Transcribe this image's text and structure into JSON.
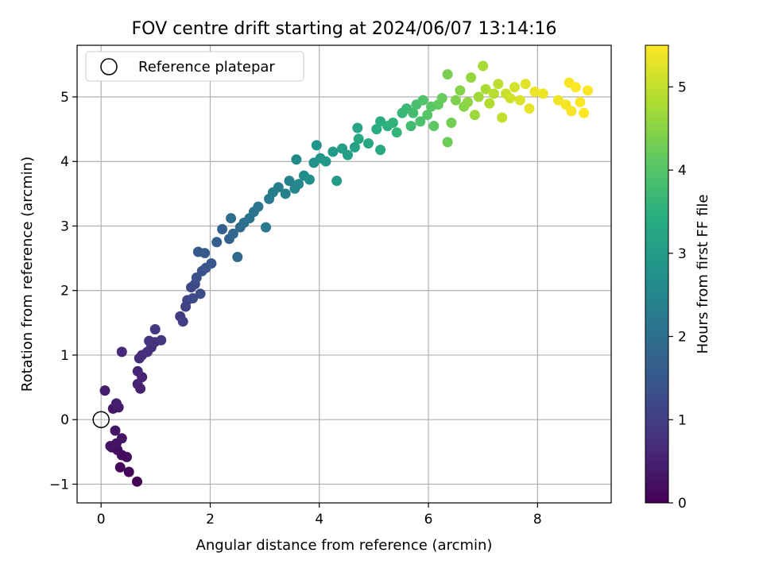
{
  "chart_data": {
    "type": "scatter",
    "title": "FOV centre drift starting at 2024/06/07 13:14:16",
    "xlabel": "Angular distance from reference (arcmin)",
    "ylabel": "Rotation from reference (arcmin)",
    "xlim": [
      -0.44,
      9.35
    ],
    "ylim": [
      -1.29,
      5.8
    ],
    "xticks": [
      0,
      2,
      4,
      6,
      8
    ],
    "xtick_labels": [
      "0",
      "2",
      "4",
      "6",
      "8"
    ],
    "yticks": [
      -1,
      0,
      1,
      2,
      3,
      4,
      5
    ],
    "ytick_labels": [
      "−1",
      "0",
      "1",
      "2",
      "3",
      "4",
      "5"
    ],
    "grid": true,
    "legend": {
      "placement": "top-left",
      "entries": [
        "Reference platepar"
      ]
    },
    "reference_point": {
      "x": 0,
      "y": 0
    },
    "colorbar": {
      "label": "Hours from first FF file",
      "range": [
        0,
        5.5
      ],
      "ticks": [
        0,
        1,
        2,
        3,
        4,
        5
      ],
      "tick_labels": [
        "0",
        "1",
        "2",
        "3",
        "4",
        "5"
      ],
      "colormap": "viridis"
    },
    "points": [
      [
        0.66,
        -0.96,
        0.05
      ],
      [
        0.51,
        -0.81,
        0.1
      ],
      [
        0.35,
        -0.74,
        0.12
      ],
      [
        0.47,
        -0.58,
        0.15
      ],
      [
        0.38,
        -0.55,
        0.17
      ],
      [
        0.3,
        -0.47,
        0.2
      ],
      [
        0.2,
        -0.43,
        0.22
      ],
      [
        0.17,
        -0.41,
        0.25
      ],
      [
        0.28,
        -0.37,
        0.28
      ],
      [
        0.38,
        -0.29,
        0.3
      ],
      [
        0.26,
        -0.17,
        0.33
      ],
      [
        0.22,
        0.17,
        0.36
      ],
      [
        0.32,
        0.19,
        0.4
      ],
      [
        0.28,
        0.25,
        0.43
      ],
      [
        0.07,
        0.45,
        0.45
      ],
      [
        0.72,
        0.48,
        0.5
      ],
      [
        0.67,
        0.55,
        0.53
      ],
      [
        0.75,
        0.66,
        0.57
      ],
      [
        0.67,
        0.75,
        0.6
      ],
      [
        0.38,
        1.05,
        0.63
      ],
      [
        0.7,
        0.95,
        0.67
      ],
      [
        0.75,
        1.0,
        0.7
      ],
      [
        0.85,
        1.05,
        0.73
      ],
      [
        0.92,
        1.12,
        0.77
      ],
      [
        0.98,
        1.2,
        0.8
      ],
      [
        0.88,
        1.22,
        0.83
      ],
      [
        1.1,
        1.23,
        0.87
      ],
      [
        0.99,
        1.4,
        0.9
      ],
      [
        1.45,
        1.6,
        0.95
      ],
      [
        1.5,
        1.52,
        1.0
      ],
      [
        1.55,
        1.75,
        1.05
      ],
      [
        1.58,
        1.85,
        1.1
      ],
      [
        1.65,
        2.05,
        1.15
      ],
      [
        1.72,
        2.1,
        1.2
      ],
      [
        1.68,
        1.88,
        1.25
      ],
      [
        1.82,
        1.95,
        1.3
      ],
      [
        1.75,
        2.2,
        1.35
      ],
      [
        1.85,
        2.3,
        1.4
      ],
      [
        1.92,
        2.35,
        1.45
      ],
      [
        2.02,
        2.42,
        1.5
      ],
      [
        1.78,
        2.6,
        1.55
      ],
      [
        1.9,
        2.58,
        1.6
      ],
      [
        2.12,
        2.75,
        1.65
      ],
      [
        2.22,
        2.95,
        1.7
      ],
      [
        2.35,
        2.8,
        1.75
      ],
      [
        2.42,
        2.88,
        1.8
      ],
      [
        2.5,
        2.52,
        1.85
      ],
      [
        2.55,
        2.98,
        1.9
      ],
      [
        2.38,
        3.12,
        1.95
      ],
      [
        2.62,
        3.05,
        2.0
      ],
      [
        2.72,
        3.12,
        2.05
      ],
      [
        2.8,
        3.22,
        2.1
      ],
      [
        2.88,
        3.3,
        2.15
      ],
      [
        3.02,
        2.98,
        2.2
      ],
      [
        3.08,
        3.42,
        2.25
      ],
      [
        3.15,
        3.52,
        2.3
      ],
      [
        3.25,
        3.6,
        2.35
      ],
      [
        3.38,
        3.5,
        2.4
      ],
      [
        3.45,
        3.7,
        2.45
      ],
      [
        3.55,
        3.58,
        2.5
      ],
      [
        3.62,
        3.65,
        2.55
      ],
      [
        3.58,
        4.03,
        2.6
      ],
      [
        3.72,
        3.78,
        2.65
      ],
      [
        3.82,
        3.72,
        2.7
      ],
      [
        3.9,
        3.98,
        2.75
      ],
      [
        3.95,
        4.25,
        2.8
      ],
      [
        4.02,
        4.05,
        2.85
      ],
      [
        4.12,
        4.0,
        2.9
      ],
      [
        4.25,
        4.15,
        2.95
      ],
      [
        4.32,
        3.7,
        3.0
      ],
      [
        4.42,
        4.2,
        3.05
      ],
      [
        4.52,
        4.1,
        3.1
      ],
      [
        4.65,
        4.22,
        3.15
      ],
      [
        4.7,
        4.52,
        3.2
      ],
      [
        4.72,
        4.35,
        3.25
      ],
      [
        4.9,
        4.28,
        3.3
      ],
      [
        5.12,
        4.18,
        3.35
      ],
      [
        5.05,
        4.5,
        3.4
      ],
      [
        5.12,
        4.62,
        3.45
      ],
      [
        5.25,
        4.55,
        3.5
      ],
      [
        5.35,
        4.6,
        3.55
      ],
      [
        5.42,
        4.45,
        3.6
      ],
      [
        5.52,
        4.75,
        3.65
      ],
      [
        5.6,
        4.82,
        3.7
      ],
      [
        5.68,
        4.55,
        3.75
      ],
      [
        5.72,
        4.75,
        3.8
      ],
      [
        5.78,
        4.88,
        3.85
      ],
      [
        5.85,
        4.62,
        3.9
      ],
      [
        5.9,
        4.95,
        3.95
      ],
      [
        5.98,
        4.72,
        4.0
      ],
      [
        6.05,
        4.85,
        4.05
      ],
      [
        6.1,
        4.55,
        4.1
      ],
      [
        6.18,
        4.88,
        4.15
      ],
      [
        6.25,
        4.98,
        4.2
      ],
      [
        6.35,
        4.3,
        4.25
      ],
      [
        6.42,
        4.6,
        4.3
      ],
      [
        6.35,
        5.35,
        4.35
      ],
      [
        6.5,
        4.95,
        4.4
      ],
      [
        6.58,
        5.1,
        4.45
      ],
      [
        6.65,
        4.85,
        4.5
      ],
      [
        6.72,
        4.92,
        4.55
      ],
      [
        6.78,
        5.3,
        4.6
      ],
      [
        6.85,
        4.72,
        4.65
      ],
      [
        6.92,
        5.0,
        4.7
      ],
      [
        7.0,
        5.48,
        4.75
      ],
      [
        7.05,
        5.12,
        4.8
      ],
      [
        7.12,
        4.9,
        4.85
      ],
      [
        7.2,
        5.05,
        4.9
      ],
      [
        7.28,
        5.2,
        4.95
      ],
      [
        7.35,
        4.68,
        5.0
      ],
      [
        7.42,
        5.05,
        5.05
      ],
      [
        7.5,
        4.98,
        5.1
      ],
      [
        7.58,
        5.15,
        5.15
      ],
      [
        7.68,
        4.95,
        5.2
      ],
      [
        7.78,
        5.2,
        5.25
      ],
      [
        7.85,
        4.82,
        5.3
      ],
      [
        7.95,
        5.08,
        5.35
      ],
      [
        8.1,
        5.05,
        5.38
      ],
      [
        8.38,
        4.95,
        5.4
      ],
      [
        8.52,
        4.88,
        5.42
      ],
      [
        8.58,
        5.22,
        5.44
      ],
      [
        8.62,
        4.78,
        5.46
      ],
      [
        8.7,
        5.15,
        5.48
      ],
      [
        8.78,
        4.92,
        5.5
      ],
      [
        8.85,
        4.75,
        5.52
      ],
      [
        8.92,
        5.1,
        5.55
      ]
    ]
  }
}
